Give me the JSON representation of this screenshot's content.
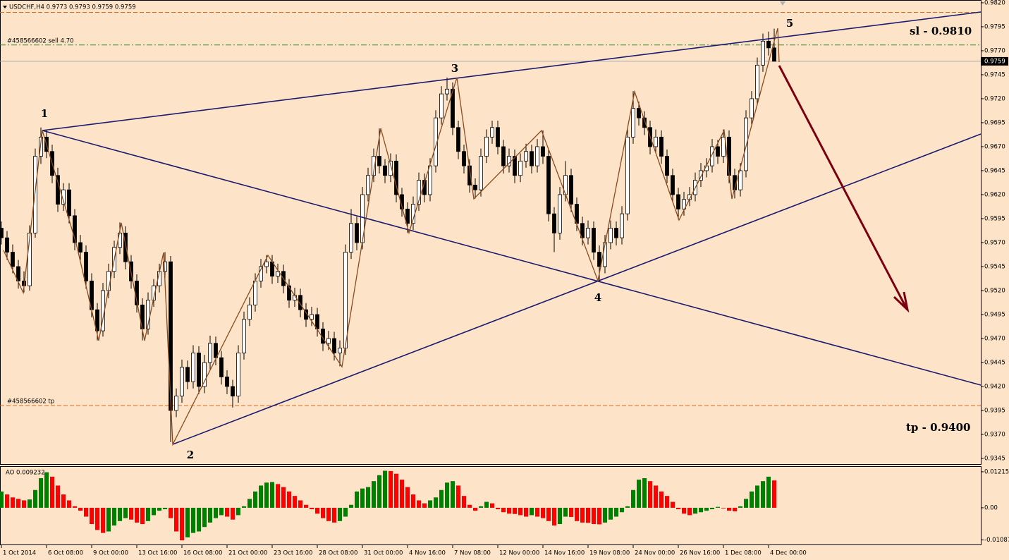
{
  "chart_data": {
    "type": "candlestick",
    "title": "USDCHF,H4  0.9773 0.9793 0.9759 0.9759",
    "ohlc": [
      [
        0.9585,
        0.9592,
        0.9568,
        0.9575
      ],
      [
        0.9575,
        0.9582,
        0.9552,
        0.956
      ],
      [
        0.956,
        0.9568,
        0.9538,
        0.9545
      ],
      [
        0.9545,
        0.9552,
        0.9522,
        0.953
      ],
      [
        0.953,
        0.954,
        0.9518,
        0.9525
      ],
      [
        0.9525,
        0.9588,
        0.952,
        0.958
      ],
      [
        0.958,
        0.9668,
        0.9575,
        0.966
      ],
      [
        0.966,
        0.969,
        0.9652,
        0.968
      ],
      [
        0.968,
        0.9687,
        0.9658,
        0.9665
      ],
      [
        0.9665,
        0.9672,
        0.9632,
        0.964
      ],
      [
        0.964,
        0.9648,
        0.9602,
        0.961
      ],
      [
        0.961,
        0.9632,
        0.9603,
        0.9625
      ],
      [
        0.9625,
        0.9632,
        0.959,
        0.9598
      ],
      [
        0.9598,
        0.9605,
        0.9562,
        0.957
      ],
      [
        0.957,
        0.9578,
        0.9552,
        0.956
      ],
      [
        0.956,
        0.9567,
        0.9522,
        0.953
      ],
      [
        0.953,
        0.9538,
        0.9492,
        0.95
      ],
      [
        0.95,
        0.9507,
        0.9468,
        0.9478
      ],
      [
        0.9478,
        0.9528,
        0.9472,
        0.952
      ],
      [
        0.952,
        0.9548,
        0.9512,
        0.954
      ],
      [
        0.954,
        0.9572,
        0.9533,
        0.9565
      ],
      [
        0.9565,
        0.9591,
        0.9558,
        0.958
      ],
      [
        0.958,
        0.9587,
        0.9542,
        0.955
      ],
      [
        0.955,
        0.9557,
        0.9522,
        0.953
      ],
      [
        0.953,
        0.9537,
        0.9497,
        0.9505
      ],
      [
        0.9505,
        0.9512,
        0.9468,
        0.948
      ],
      [
        0.948,
        0.9518,
        0.9474,
        0.951
      ],
      [
        0.951,
        0.9532,
        0.9503,
        0.9525
      ],
      [
        0.9525,
        0.9548,
        0.9518,
        0.954
      ],
      [
        0.954,
        0.956,
        0.9533,
        0.955
      ],
      [
        0.955,
        0.9556,
        0.9362,
        0.9395
      ],
      [
        0.9395,
        0.9418,
        0.9388,
        0.941
      ],
      [
        0.941,
        0.9448,
        0.9403,
        0.944
      ],
      [
        0.944,
        0.9447,
        0.9417,
        0.9425
      ],
      [
        0.9425,
        0.9463,
        0.9418,
        0.9455
      ],
      [
        0.9455,
        0.9462,
        0.9412,
        0.942
      ],
      [
        0.942,
        0.9453,
        0.9413,
        0.9445
      ],
      [
        0.9445,
        0.9473,
        0.9438,
        0.9465
      ],
      [
        0.9465,
        0.9472,
        0.9442,
        0.945
      ],
      [
        0.945,
        0.9457,
        0.9422,
        0.943
      ],
      [
        0.943,
        0.9437,
        0.9412,
        0.942
      ],
      [
        0.942,
        0.9427,
        0.9398,
        0.941
      ],
      [
        0.941,
        0.9463,
        0.9403,
        0.9455
      ],
      [
        0.9455,
        0.9498,
        0.9448,
        0.949
      ],
      [
        0.949,
        0.9513,
        0.9483,
        0.9505
      ],
      [
        0.9505,
        0.9538,
        0.9498,
        0.953
      ],
      [
        0.953,
        0.9553,
        0.9523,
        0.9545
      ],
      [
        0.9545,
        0.9557,
        0.9538,
        0.955
      ],
      [
        0.955,
        0.9557,
        0.9527,
        0.9535
      ],
      [
        0.9535,
        0.9548,
        0.9528,
        0.954
      ],
      [
        0.954,
        0.9547,
        0.9517,
        0.9525
      ],
      [
        0.9525,
        0.9532,
        0.9502,
        0.951
      ],
      [
        0.951,
        0.9523,
        0.9503,
        0.9515
      ],
      [
        0.9515,
        0.9522,
        0.9492,
        0.95
      ],
      [
        0.95,
        0.9507,
        0.9482,
        0.949
      ],
      [
        0.949,
        0.9503,
        0.9483,
        0.9495
      ],
      [
        0.9495,
        0.9502,
        0.9472,
        0.948
      ],
      [
        0.948,
        0.9487,
        0.9457,
        0.9465
      ],
      [
        0.9465,
        0.9478,
        0.9458,
        0.947
      ],
      [
        0.947,
        0.9477,
        0.9447,
        0.9455
      ],
      [
        0.9455,
        0.9468,
        0.9441,
        0.946
      ],
      [
        0.946,
        0.9568,
        0.9453,
        0.956
      ],
      [
        0.956,
        0.9605,
        0.9553,
        0.959
      ],
      [
        0.959,
        0.9597,
        0.9562,
        0.957
      ],
      [
        0.957,
        0.9628,
        0.9563,
        0.962
      ],
      [
        0.962,
        0.9648,
        0.9613,
        0.964
      ],
      [
        0.964,
        0.9668,
        0.9633,
        0.966
      ],
      [
        0.966,
        0.9689,
        0.9642,
        0.965
      ],
      [
        0.965,
        0.9657,
        0.9632,
        0.964
      ],
      [
        0.964,
        0.9663,
        0.9633,
        0.9655
      ],
      [
        0.9655,
        0.9662,
        0.9612,
        0.962
      ],
      [
        0.962,
        0.9627,
        0.9597,
        0.9605
      ],
      [
        0.9605,
        0.9612,
        0.958,
        0.959
      ],
      [
        0.959,
        0.9618,
        0.9583,
        0.961
      ],
      [
        0.961,
        0.9643,
        0.9603,
        0.9635
      ],
      [
        0.9635,
        0.9642,
        0.9612,
        0.962
      ],
      [
        0.962,
        0.9658,
        0.9613,
        0.965
      ],
      [
        0.965,
        0.9708,
        0.9643,
        0.97
      ],
      [
        0.97,
        0.9733,
        0.9693,
        0.9725
      ],
      [
        0.9725,
        0.9742,
        0.9718,
        0.973
      ],
      [
        0.973,
        0.9737,
        0.9682,
        0.969
      ],
      [
        0.969,
        0.9697,
        0.9657,
        0.9665
      ],
      [
        0.9665,
        0.9672,
        0.9642,
        0.965
      ],
      [
        0.965,
        0.9657,
        0.9622,
        0.963
      ],
      [
        0.963,
        0.9637,
        0.9616,
        0.9625
      ],
      [
        0.9625,
        0.9668,
        0.9618,
        0.966
      ],
      [
        0.966,
        0.9688,
        0.9653,
        0.968
      ],
      [
        0.968,
        0.9697,
        0.9673,
        0.969
      ],
      [
        0.969,
        0.9697,
        0.9662,
        0.967
      ],
      [
        0.967,
        0.9677,
        0.9642,
        0.965
      ],
      [
        0.965,
        0.9668,
        0.9643,
        0.966
      ],
      [
        0.966,
        0.9667,
        0.9632,
        0.964
      ],
      [
        0.964,
        0.9663,
        0.9633,
        0.9655
      ],
      [
        0.9655,
        0.9673,
        0.9648,
        0.9665
      ],
      [
        0.9665,
        0.9672,
        0.9642,
        0.965
      ],
      [
        0.965,
        0.9678,
        0.9643,
        0.967
      ],
      [
        0.967,
        0.9687,
        0.9652,
        0.966
      ],
      [
        0.966,
        0.9667,
        0.9592,
        0.96
      ],
      [
        0.96,
        0.9607,
        0.956,
        0.958
      ],
      [
        0.958,
        0.9628,
        0.9573,
        0.962
      ],
      [
        0.962,
        0.9655,
        0.9613,
        0.964
      ],
      [
        0.964,
        0.9647,
        0.9602,
        0.961
      ],
      [
        0.961,
        0.9617,
        0.9582,
        0.959
      ],
      [
        0.959,
        0.9597,
        0.9567,
        0.9575
      ],
      [
        0.9575,
        0.9593,
        0.9568,
        0.9585
      ],
      [
        0.9585,
        0.9592,
        0.9552,
        0.956
      ],
      [
        0.956,
        0.9567,
        0.953,
        0.9545
      ],
      [
        0.9545,
        0.9578,
        0.9538,
        0.957
      ],
      [
        0.957,
        0.9593,
        0.9563,
        0.9585
      ],
      [
        0.9585,
        0.9592,
        0.9567,
        0.9575
      ],
      [
        0.9575,
        0.9608,
        0.9568,
        0.96
      ],
      [
        0.96,
        0.9688,
        0.9593,
        0.968
      ],
      [
        0.968,
        0.9728,
        0.9673,
        0.971
      ],
      [
        0.971,
        0.9717,
        0.9692,
        0.97
      ],
      [
        0.97,
        0.9707,
        0.9682,
        0.969
      ],
      [
        0.969,
        0.9697,
        0.9662,
        0.967
      ],
      [
        0.967,
        0.9688,
        0.9663,
        0.968
      ],
      [
        0.968,
        0.9687,
        0.9652,
        0.966
      ],
      [
        0.966,
        0.9667,
        0.9632,
        0.964
      ],
      [
        0.964,
        0.9647,
        0.9612,
        0.962
      ],
      [
        0.962,
        0.9627,
        0.9594,
        0.9605
      ],
      [
        0.9605,
        0.9623,
        0.9598,
        0.9615
      ],
      [
        0.9615,
        0.9628,
        0.9608,
        0.962
      ],
      [
        0.962,
        0.9643,
        0.9613,
        0.9635
      ],
      [
        0.9635,
        0.9653,
        0.9628,
        0.9645
      ],
      [
        0.9645,
        0.9658,
        0.9638,
        0.965
      ],
      [
        0.965,
        0.9678,
        0.9643,
        0.967
      ],
      [
        0.967,
        0.9677,
        0.9652,
        0.966
      ],
      [
        0.966,
        0.9688,
        0.9653,
        0.968
      ],
      [
        0.968,
        0.9687,
        0.9632,
        0.964
      ],
      [
        0.964,
        0.9647,
        0.9616,
        0.9625
      ],
      [
        0.9625,
        0.9653,
        0.9618,
        0.9645
      ],
      [
        0.9645,
        0.9708,
        0.9638,
        0.97
      ],
      [
        0.97,
        0.9728,
        0.9693,
        0.972
      ],
      [
        0.972,
        0.9763,
        0.9713,
        0.9755
      ],
      [
        0.9755,
        0.9788,
        0.9748,
        0.978
      ],
      [
        0.978,
        0.979,
        0.9765,
        0.9773
      ],
      [
        0.9773,
        0.9793,
        0.9759,
        0.9759
      ]
    ],
    "bull_color": "#ffffff",
    "bear_color": "#000000",
    "xlim": [
      -0.25,
      173.625
    ],
    "xticks": [
      {
        "value": 0,
        "label": "1 Oct 2014"
      },
      {
        "value": 8,
        "label": "6 Oct 08:00"
      },
      {
        "value": 16,
        "label": "9 Oct 00:00"
      },
      {
        "value": 24,
        "label": "13 Oct 16:00"
      },
      {
        "value": 32,
        "label": "16 Oct 08:00"
      },
      {
        "value": 40,
        "label": "21 Oct 00:00"
      },
      {
        "value": 48,
        "label": "23 Oct 16:00"
      },
      {
        "value": 56,
        "label": "28 Oct 08:00"
      },
      {
        "value": 64,
        "label": "31 Oct 00:00"
      },
      {
        "value": 72,
        "label": "4 Nov 16:00"
      },
      {
        "value": 80,
        "label": "7 Nov 08:00"
      },
      {
        "value": 88,
        "label": "12 Nov 00:00"
      },
      {
        "value": 96,
        "label": "14 Nov 16:00"
      },
      {
        "value": 104,
        "label": "19 Nov 08:00"
      },
      {
        "value": 112,
        "label": "24 Nov 00:00"
      },
      {
        "value": 120,
        "label": "26 Nov 16:00"
      },
      {
        "value": 128,
        "label": "1 Dec 08:00"
      },
      {
        "value": 136,
        "label": "4 Dec 00:00"
      }
    ],
    "ylim": [
      0.93391,
      0.98229
    ],
    "yticks": [
      {
        "value": 0.982,
        "label": "0.9820"
      },
      0.9795,
      {
        "value": 0.977,
        "label": "0.9770"
      },
      0.9745,
      {
        "value": 0.972,
        "label": "0.9720"
      },
      0.9695,
      {
        "value": 0.967,
        "label": "0.9670"
      },
      0.9645,
      {
        "value": 0.962,
        "label": "0.9620"
      },
      0.9595,
      {
        "value": 0.957,
        "label": "0.9570"
      },
      0.9545,
      {
        "value": 0.952,
        "label": "0.9520"
      },
      0.9495,
      {
        "value": 0.947,
        "label": "0.9470"
      },
      0.9445,
      {
        "value": 0.942,
        "label": "0.9420"
      },
      0.9395,
      {
        "value": 0.937,
        "label": "0.9370"
      },
      0.9345
    ],
    "levels": [
      {
        "value": 0.981,
        "color": "#d2691e",
        "dash": "6 3"
      },
      {
        "value": 0.9776,
        "label": "#458566602 sell 4.70",
        "color": "#2e8b2e",
        "dash": "8 3 2 3"
      },
      {
        "value": 0.94,
        "label": "#458566602 tp",
        "color": "#d2691e",
        "dash": "6 3"
      }
    ],
    "current_price_color": "#a8a8a8",
    "annotations": [
      "1",
      "2",
      "3",
      "4",
      "5",
      "sl - 0.9810",
      "tp - 0.9400"
    ],
    "indicator": {
      "type": "bar",
      "label": "AO 0.009232",
      "up_color": "#008000",
      "down_color": "#ff0000",
      "ylim": [
        -0.0124,
        0.0138
      ],
      "yticks": [
        0.01215,
        {
          "value": 0,
          "label": "0.00"
        },
        -0.01087
      ],
      "values": [
        0.0055,
        0.0045,
        0.0035,
        0.003,
        0.0025,
        0.0028,
        0.006,
        0.01,
        0.012,
        0.0105,
        0.0075,
        0.0045,
        0.0025,
        0.0005,
        -0.001,
        -0.003,
        -0.0055,
        -0.0075,
        -0.0085,
        -0.008,
        -0.006,
        -0.0045,
        -0.0035,
        -0.004,
        -0.005,
        -0.0055,
        -0.0045,
        -0.0025,
        -0.001,
        -0.0005,
        -0.0035,
        -0.008,
        -0.011,
        -0.01,
        -0.0085,
        -0.008,
        -0.0065,
        -0.005,
        -0.0035,
        -0.0025,
        -0.003,
        -0.004,
        -0.0025,
        0.0005,
        0.003,
        0.0055,
        0.0075,
        0.0085,
        0.0087,
        0.008,
        0.007,
        0.0055,
        0.004,
        0.0025,
        0.001,
        -0.0005,
        -0.002,
        -0.0035,
        -0.0045,
        -0.005,
        -0.0045,
        -0.003,
        0.001,
        0.0055,
        0.0065,
        0.007,
        0.009,
        0.011,
        0.0125,
        0.0124,
        0.0115,
        0.0095,
        0.007,
        0.0045,
        0.0025,
        0.0015,
        0.0025,
        0.0035,
        0.006,
        0.0085,
        0.009,
        0.0075,
        0.004,
        0.001,
        -0.001,
        0.0005,
        0.002,
        0.0015,
        -0.0005,
        -0.0015,
        -0.002,
        -0.0021,
        -0.0025,
        -0.003,
        -0.0025,
        -0.003,
        -0.0035,
        -0.0045,
        -0.006,
        -0.0055,
        -0.003,
        -0.0031,
        -0.0045,
        -0.005,
        -0.0051,
        -0.0055,
        -0.0056,
        -0.005,
        -0.004,
        -0.003,
        -0.0015,
        0.0005,
        0.006,
        0.0095,
        0.01,
        0.009,
        0.0075,
        0.0055,
        0.004,
        0.002,
        -0.0005,
        -0.002,
        -0.0025,
        -0.002,
        -0.0015,
        -0.001,
        -0.0005,
        0.0003,
        -0.0002,
        -0.001,
        -0.0012,
        0.0005,
        0.003,
        0.0055,
        0.0075,
        0.009,
        0.0105,
        0.009232
      ]
    }
  }
}
